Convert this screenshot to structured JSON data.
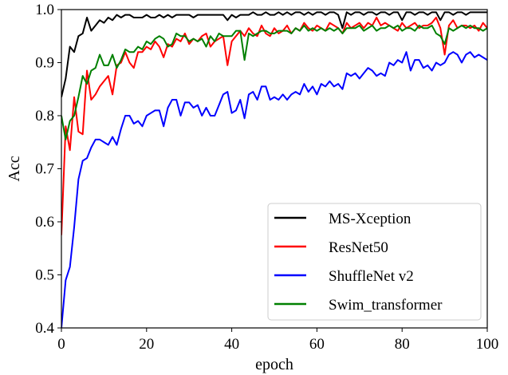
{
  "chart_data": {
    "type": "line",
    "title": "",
    "xlabel": "epoch",
    "ylabel": "Acc",
    "xlim": [
      0,
      100
    ],
    "ylim": [
      0.4,
      1.0
    ],
    "x_ticks": [
      "0",
      "20",
      "40",
      "60",
      "80",
      "100"
    ],
    "y_ticks": [
      "0.4",
      "0.5",
      "0.6",
      "0.7",
      "0.8",
      "0.9",
      "1.0"
    ],
    "grid": false,
    "legend_position": "lower-right",
    "series": [
      {
        "name": "MS-Xception",
        "color": "#000000",
        "values": [
          0.835,
          0.87,
          0.93,
          0.92,
          0.95,
          0.955,
          0.985,
          0.96,
          0.97,
          0.98,
          0.975,
          0.985,
          0.98,
          0.99,
          0.985,
          0.99,
          0.99,
          0.985,
          0.985,
          0.985,
          0.99,
          0.985,
          0.985,
          0.99,
          0.985,
          0.99,
          0.985,
          0.99,
          0.99,
          0.99,
          0.99,
          0.985,
          0.99,
          0.99,
          0.99,
          0.99,
          0.99,
          0.99,
          0.99,
          0.98,
          0.99,
          0.985,
          0.99,
          0.99,
          0.99,
          0.995,
          0.99,
          0.99,
          0.995,
          0.99,
          0.99,
          0.995,
          0.99,
          0.995,
          0.99,
          0.995,
          0.995,
          0.99,
          0.995,
          0.99,
          0.995,
          0.995,
          0.99,
          0.995,
          0.995,
          0.99,
          0.965,
          0.995,
          0.99,
          0.995,
          0.995,
          0.99,
          0.995,
          0.995,
          0.99,
          0.995,
          0.995,
          0.99,
          0.995,
          0.995,
          0.98,
          0.995,
          0.995,
          0.99,
          0.995,
          0.995,
          0.99,
          0.995,
          0.995,
          0.98,
          0.995,
          0.995,
          0.99,
          0.995,
          0.995,
          0.99,
          0.995,
          0.995,
          0.995,
          0.995,
          0.995
        ]
      },
      {
        "name": "ResNet50",
        "color": "#ff0000",
        "values": [
          0.575,
          0.78,
          0.735,
          0.835,
          0.77,
          0.765,
          0.885,
          0.83,
          0.84,
          0.855,
          0.865,
          0.875,
          0.84,
          0.895,
          0.9,
          0.92,
          0.9,
          0.89,
          0.92,
          0.92,
          0.93,
          0.925,
          0.94,
          0.93,
          0.91,
          0.935,
          0.93,
          0.945,
          0.94,
          0.955,
          0.935,
          0.945,
          0.94,
          0.95,
          0.955,
          0.93,
          0.94,
          0.945,
          0.95,
          0.895,
          0.94,
          0.95,
          0.96,
          0.95,
          0.965,
          0.955,
          0.95,
          0.97,
          0.955,
          0.95,
          0.965,
          0.955,
          0.96,
          0.97,
          0.955,
          0.965,
          0.96,
          0.975,
          0.965,
          0.96,
          0.97,
          0.965,
          0.96,
          0.975,
          0.97,
          0.965,
          0.955,
          0.975,
          0.965,
          0.97,
          0.975,
          0.965,
          0.975,
          0.97,
          0.985,
          0.97,
          0.975,
          0.97,
          0.965,
          0.96,
          0.975,
          0.965,
          0.97,
          0.975,
          0.965,
          0.97,
          0.97,
          0.975,
          0.985,
          0.965,
          0.915,
          0.97,
          0.98,
          0.965,
          0.97,
          0.97,
          0.965,
          0.97,
          0.96,
          0.975,
          0.965
        ]
      },
      {
        "name": "ShuffleNet v2",
        "color": "#0000ff",
        "values": [
          0.4,
          0.49,
          0.515,
          0.59,
          0.68,
          0.715,
          0.72,
          0.74,
          0.755,
          0.755,
          0.75,
          0.745,
          0.76,
          0.745,
          0.775,
          0.8,
          0.8,
          0.785,
          0.79,
          0.78,
          0.8,
          0.805,
          0.81,
          0.81,
          0.78,
          0.815,
          0.83,
          0.83,
          0.8,
          0.825,
          0.825,
          0.815,
          0.82,
          0.8,
          0.815,
          0.8,
          0.8,
          0.82,
          0.84,
          0.845,
          0.805,
          0.81,
          0.83,
          0.795,
          0.84,
          0.845,
          0.83,
          0.855,
          0.855,
          0.83,
          0.835,
          0.83,
          0.84,
          0.83,
          0.84,
          0.845,
          0.84,
          0.86,
          0.845,
          0.855,
          0.84,
          0.86,
          0.855,
          0.865,
          0.855,
          0.86,
          0.85,
          0.88,
          0.875,
          0.88,
          0.87,
          0.88,
          0.89,
          0.885,
          0.875,
          0.88,
          0.875,
          0.9,
          0.895,
          0.905,
          0.9,
          0.92,
          0.885,
          0.905,
          0.905,
          0.89,
          0.895,
          0.885,
          0.9,
          0.895,
          0.9,
          0.915,
          0.92,
          0.915,
          0.9,
          0.915,
          0.92,
          0.91,
          0.915,
          0.91,
          0.905
        ]
      },
      {
        "name": "Swim_transformer",
        "color": "#008000",
        "values": [
          0.8,
          0.755,
          0.79,
          0.8,
          0.835,
          0.875,
          0.86,
          0.885,
          0.89,
          0.915,
          0.895,
          0.895,
          0.915,
          0.89,
          0.905,
          0.925,
          0.92,
          0.92,
          0.93,
          0.925,
          0.94,
          0.935,
          0.945,
          0.95,
          0.945,
          0.93,
          0.935,
          0.955,
          0.95,
          0.95,
          0.94,
          0.945,
          0.94,
          0.945,
          0.93,
          0.95,
          0.94,
          0.955,
          0.95,
          0.95,
          0.95,
          0.96,
          0.96,
          0.905,
          0.955,
          0.95,
          0.955,
          0.96,
          0.96,
          0.955,
          0.955,
          0.96,
          0.96,
          0.96,
          0.955,
          0.965,
          0.96,
          0.97,
          0.96,
          0.965,
          0.96,
          0.965,
          0.96,
          0.965,
          0.96,
          0.965,
          0.955,
          0.965,
          0.965,
          0.965,
          0.97,
          0.96,
          0.965,
          0.97,
          0.96,
          0.965,
          0.965,
          0.97,
          0.965,
          0.97,
          0.96,
          0.965,
          0.965,
          0.96,
          0.97,
          0.965,
          0.965,
          0.97,
          0.955,
          0.95,
          0.935,
          0.965,
          0.96,
          0.965,
          0.97,
          0.965,
          0.97,
          0.965,
          0.965,
          0.96,
          0.965
        ]
      }
    ]
  }
}
